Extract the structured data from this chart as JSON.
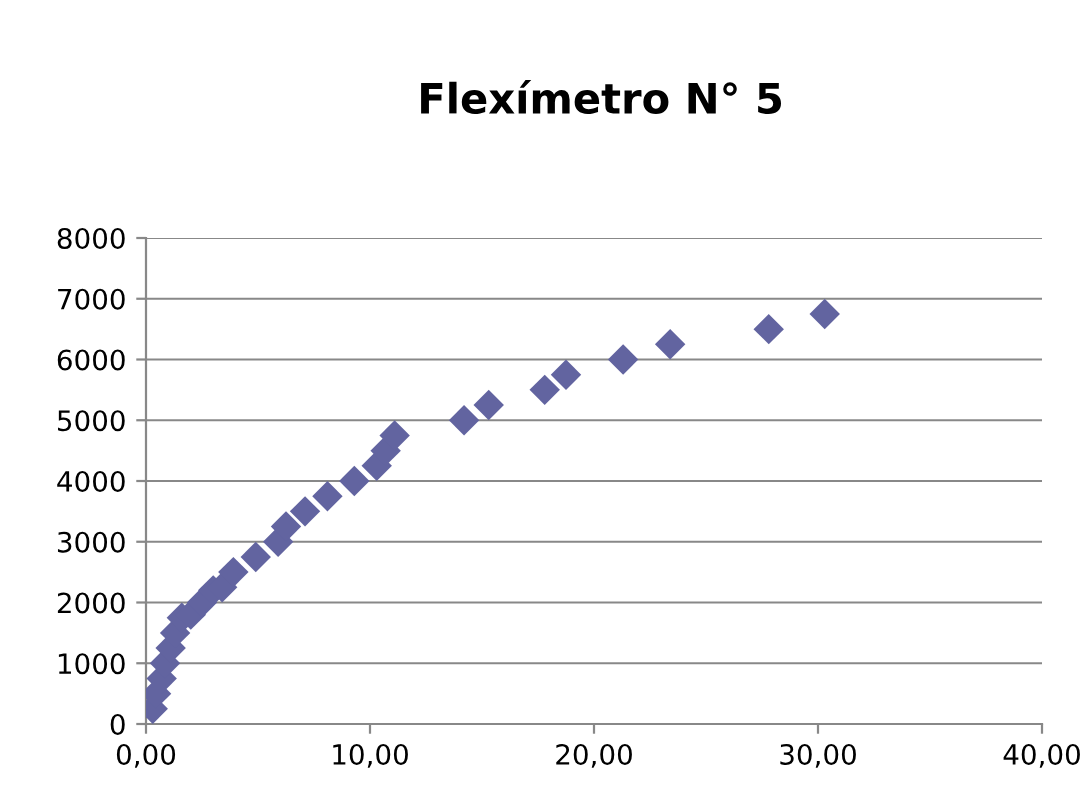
{
  "chart_data": {
    "type": "scatter",
    "title": "Flexímetro N° 5",
    "series": [
      {
        "color": "#6264a0",
        "x": [
          0.3,
          0.45,
          0.7,
          0.85,
          1.1,
          1.3,
          1.6,
          2.0,
          2.5,
          3.0,
          3.4,
          3.9,
          4.9,
          5.9,
          6.25,
          7.1,
          8.1,
          9.3,
          10.3,
          10.7,
          11.1,
          14.2,
          15.3,
          17.8,
          18.75,
          21.3,
          23.4,
          27.8,
          30.3
        ],
        "values": [
          250,
          500,
          750,
          1000,
          1250,
          1500,
          1750,
          1800,
          2000,
          2200,
          2250,
          2500,
          2750,
          3000,
          3250,
          3500,
          3750,
          4000,
          4250,
          4500,
          4750,
          5000,
          5250,
          5500,
          5750,
          6000,
          6250,
          6500,
          6750
        ]
      }
    ],
    "marker": "diamond",
    "xlim": [
      0,
      40
    ],
    "xticks": [
      {
        "value": 0,
        "label": "0,00"
      },
      {
        "value": 10,
        "label": "10,00"
      },
      {
        "value": 20,
        "label": "20,00"
      },
      {
        "value": 30,
        "label": "30,00"
      },
      {
        "value": 40,
        "label": "40,00"
      }
    ],
    "ylim": [
      0,
      8000
    ],
    "yticks": [
      0,
      1000,
      2000,
      3000,
      4000,
      5000,
      6000,
      7000,
      8000
    ],
    "grid": "y"
  }
}
